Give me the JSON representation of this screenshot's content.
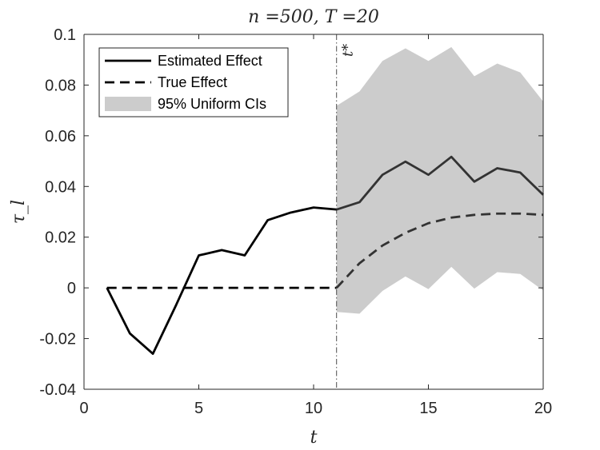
{
  "chart_data": {
    "type": "line",
    "title": "n =500, T =20",
    "xlabel": "t",
    "ylabel": "τ_l",
    "xlim": [
      0,
      20
    ],
    "ylim": [
      -0.04,
      0.1
    ],
    "xticks": [
      0,
      5,
      10,
      15,
      20
    ],
    "xtick_labels": [
      "0",
      "5",
      "10",
      "15",
      "20"
    ],
    "yticks": [
      -0.04,
      -0.02,
      0,
      0.02,
      0.04,
      0.06,
      0.08,
      0.1
    ],
    "ytick_labels": [
      "-0.04",
      "-0.02",
      "0",
      "0.02",
      "0.04",
      "0.06",
      "0.08",
      "0.1"
    ],
    "grid": false,
    "legend_position": "top-left",
    "vline": {
      "x": 11,
      "label": "t*"
    },
    "series": [
      {
        "name": "Estimated Effect",
        "style": "solid",
        "x": [
          1,
          2,
          3,
          4,
          5,
          6,
          7,
          8,
          9,
          10,
          11,
          12,
          13,
          14,
          15,
          16,
          17,
          18,
          19,
          20
        ],
        "values": [
          0.0,
          -0.018,
          -0.026,
          -0.007,
          0.0128,
          0.0149,
          0.0128,
          0.0267,
          0.0297,
          0.0317,
          0.0309,
          0.0338,
          0.0446,
          0.0498,
          0.0446,
          0.0517,
          0.0419,
          0.0472,
          0.0455,
          0.0367
        ]
      },
      {
        "name": "True Effect",
        "style": "dashed",
        "x": [
          1,
          2,
          3,
          4,
          5,
          6,
          7,
          8,
          9,
          10,
          11,
          12,
          13,
          14,
          15,
          16,
          17,
          18,
          19,
          20
        ],
        "values": [
          0,
          0,
          0,
          0,
          0,
          0,
          0,
          0,
          0,
          0,
          0.0,
          0.0097,
          0.0167,
          0.0217,
          0.0255,
          0.0277,
          0.0288,
          0.0293,
          0.0293,
          0.0288
        ]
      }
    ],
    "band": {
      "name": "95% Uniform CIs",
      "x": [
        11,
        12,
        13,
        14,
        15,
        16,
        17,
        18,
        19,
        20
      ],
      "upper": [
        0.0718,
        0.0775,
        0.0895,
        0.0945,
        0.0895,
        0.095,
        0.0835,
        0.0885,
        0.085,
        0.0735
      ],
      "lower": [
        -0.0095,
        -0.0102,
        -0.0012,
        0.0045,
        -0.0005,
        0.0083,
        -0.0003,
        0.0062,
        0.0055,
        -0.001
      ]
    },
    "colors": {
      "band": "#cccccc",
      "estimated": "#000000",
      "estimated_post": "#333333",
      "true": "#000000",
      "true_post": "#333333",
      "axis": "#262626",
      "vline": "#4d4d4d"
    }
  }
}
